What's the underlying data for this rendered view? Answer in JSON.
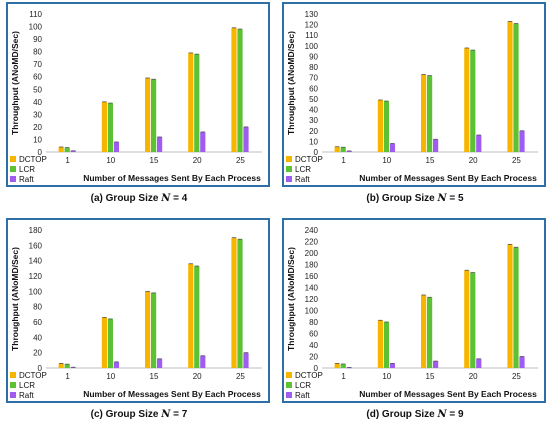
{
  "colors": {
    "DCTOP": "#f7b500",
    "LCR": "#5cc234",
    "Raft": "#a05cf0",
    "frame": "#2f6fa8"
  },
  "chart_data": [
    {
      "type": "bar",
      "caption_prefix": "(a) Group Size",
      "caption_var": "N",
      "caption_value": "= 4",
      "categories": [
        "1",
        "10",
        "15",
        "20",
        "25"
      ],
      "series": [
        {
          "name": "DCTOP",
          "values": [
            4,
            40,
            59,
            79,
            99
          ]
        },
        {
          "name": "LCR",
          "values": [
            3.5,
            39,
            58,
            78,
            98
          ]
        },
        {
          "name": "Raft",
          "values": [
            1,
            8,
            12,
            16,
            20
          ]
        }
      ],
      "ylim": [
        0,
        110
      ],
      "yticks": [
        "0",
        "10",
        "20",
        "30",
        "40",
        "50",
        "60",
        "70",
        "80",
        "90",
        "100",
        "110"
      ],
      "xlabel": "Number of Messages Sent By Each Process",
      "ylabel": "Throughput (ANoMD/Sec)",
      "legend": "bottom-left"
    },
    {
      "type": "bar",
      "caption_prefix": "(b) Group Size",
      "caption_var": "N",
      "caption_value": "= 5",
      "categories": [
        "1",
        "10",
        "15",
        "20",
        "25"
      ],
      "series": [
        {
          "name": "DCTOP",
          "values": [
            5,
            49,
            73,
            98,
            123
          ]
        },
        {
          "name": "LCR",
          "values": [
            4.5,
            48,
            72,
            96,
            121
          ]
        },
        {
          "name": "Raft",
          "values": [
            1,
            8,
            12,
            16,
            20
          ]
        }
      ],
      "ylim": [
        0,
        130
      ],
      "yticks": [
        "0",
        "10",
        "20",
        "30",
        "40",
        "50",
        "60",
        "70",
        "80",
        "90",
        "100",
        "110",
        "120",
        "130"
      ],
      "xlabel": "Number of Messages Sent By Each Process",
      "ylabel": "Throughput (ANoMD/Sec)",
      "legend": "bottom-left"
    },
    {
      "type": "bar",
      "caption_prefix": "(c) Group Size",
      "caption_var": "N",
      "caption_value": "= 7",
      "categories": [
        "1",
        "10",
        "15",
        "20",
        "25"
      ],
      "series": [
        {
          "name": "DCTOP",
          "values": [
            6,
            66,
            100,
            136,
            170
          ]
        },
        {
          "name": "LCR",
          "values": [
            5,
            64,
            98,
            133,
            168
          ]
        },
        {
          "name": "Raft",
          "values": [
            1,
            8,
            12,
            16,
            20
          ]
        }
      ],
      "ylim": [
        0,
        180
      ],
      "yticks": [
        "0",
        "20",
        "40",
        "60",
        "80",
        "100",
        "120",
        "140",
        "160",
        "180"
      ],
      "xlabel": "Number of Messages Sent By Each Process",
      "ylabel": "Throughput (ANoMD/Sec)",
      "legend": "bottom-left"
    },
    {
      "type": "bar",
      "caption_prefix": "(d) Group Size",
      "caption_var": "N",
      "caption_value": "= 9",
      "categories": [
        "1",
        "10",
        "15",
        "20",
        "25"
      ],
      "series": [
        {
          "name": "DCTOP",
          "values": [
            8,
            83,
            127,
            170,
            215
          ]
        },
        {
          "name": "LCR",
          "values": [
            7,
            80,
            123,
            166,
            210
          ]
        },
        {
          "name": "Raft",
          "values": [
            1,
            8,
            12,
            16,
            20
          ]
        }
      ],
      "ylim": [
        0,
        240
      ],
      "yticks": [
        "0",
        "20",
        "40",
        "60",
        "80",
        "100",
        "120",
        "140",
        "160",
        "180",
        "200",
        "220",
        "240"
      ],
      "xlabel": "Number of Messages Sent By Each Process",
      "ylabel": "Throughput (ANoMD/Sec)",
      "legend": "bottom-left"
    }
  ]
}
